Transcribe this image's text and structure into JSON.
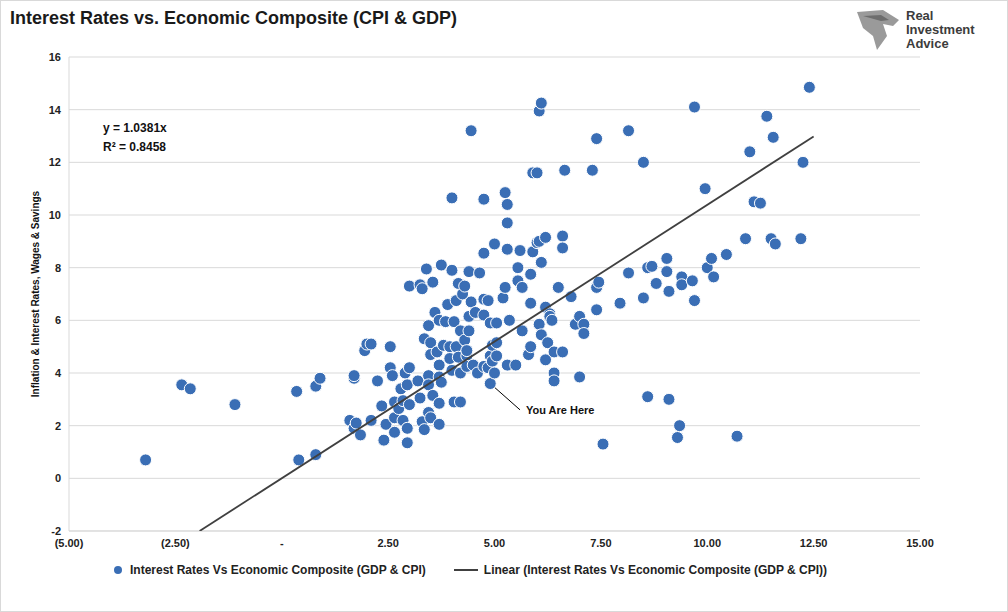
{
  "chart_data": {
    "type": "scatter",
    "title": "Interest Rates vs. Economic Composite (CPI & GDP)",
    "y_label": "Inflation & Interest Rates, Wages & Savings",
    "logo": [
      "Real",
      "Investment",
      "Advice"
    ],
    "annotations": [
      {
        "text": "y = 1.0381x"
      },
      {
        "text": "R² = 0.8458"
      },
      {
        "text": "You Are Here",
        "x": 4.9,
        "y": 3.6,
        "text_x": 5.6,
        "text_y": 2.6
      }
    ],
    "xlim": [
      -5,
      15
    ],
    "xticks": [
      {
        "value": -5,
        "label": "(5.00)"
      },
      {
        "value": -2.5,
        "label": "(2.50)"
      },
      {
        "value": 0,
        "label": "-"
      },
      {
        "value": 2.5,
        "label": "2.50"
      },
      {
        "value": 5,
        "label": "5.00"
      },
      {
        "value": 7.5,
        "label": "7.50"
      },
      {
        "value": 10,
        "label": "10.00"
      },
      {
        "value": 12.5,
        "label": "12.50"
      },
      {
        "value": 15,
        "label": "15.00"
      }
    ],
    "ylim": [
      -2,
      16
    ],
    "yticks": [
      -2,
      0,
      2,
      4,
      6,
      8,
      10,
      12,
      14,
      16
    ],
    "grid": "y",
    "legend": "bottom",
    "series": [
      {
        "name": "Interest Rates Vs Economic Composite (GDP & CPI)",
        "type": "scatter",
        "marker": "circle",
        "color": "#3a6eb5",
        "x": [
          -3.2,
          -2.35,
          -2.15,
          -1.1,
          0.35,
          0.4,
          0.8,
          0.8,
          0.9,
          1.6,
          1.7,
          1.75,
          1.7,
          1.7,
          1.85,
          1.95,
          2.0,
          2.1,
          2.1,
          2.25,
          2.35,
          2.4,
          2.45,
          2.55,
          2.55,
          2.6,
          2.65,
          2.65,
          2.65,
          2.75,
          2.8,
          2.85,
          2.85,
          2.9,
          2.95,
          2.95,
          2.95,
          3.0,
          3.0,
          3.0,
          3.2,
          3.25,
          3.25,
          3.3,
          3.3,
          3.35,
          3.35,
          3.4,
          3.45,
          3.45,
          3.45,
          3.45,
          3.5,
          3.5,
          3.5,
          3.55,
          3.55,
          3.6,
          3.65,
          3.7,
          3.7,
          3.7,
          3.7,
          3.7,
          3.75,
          3.75,
          3.8,
          3.85,
          3.9,
          3.95,
          3.95,
          4.0,
          4.0,
          4.0,
          4.05,
          4.05,
          4.1,
          4.1,
          4.15,
          4.15,
          4.2,
          4.2,
          4.2,
          4.25,
          4.3,
          4.3,
          4.35,
          4.35,
          4.35,
          4.4,
          4.4,
          4.4,
          4.45,
          4.45,
          4.5,
          4.55,
          4.6,
          4.65,
          4.75,
          4.75,
          4.75,
          4.75,
          4.75,
          4.85,
          4.85,
          4.9,
          4.9,
          4.9,
          4.95,
          4.95,
          5.0,
          5.0,
          5.05,
          5.05,
          5.05,
          5.2,
          5.25,
          5.25,
          5.3,
          5.3,
          5.3,
          5.3,
          5.35,
          5.5,
          5.55,
          5.55,
          5.6,
          5.65,
          5.65,
          5.8,
          5.85,
          5.85,
          5.85,
          5.9,
          5.9,
          6.0,
          6.0,
          6.05,
          6.05,
          6.05,
          6.1,
          6.1,
          6.1,
          6.2,
          6.2,
          6.2,
          6.25,
          6.3,
          6.3,
          6.35,
          6.4,
          6.4,
          6.4,
          6.5,
          6.6,
          6.6,
          6.6,
          6.65,
          6.8,
          6.9,
          7.0,
          7.0,
          7.1,
          7.1,
          7.3,
          7.4,
          7.4,
          7.4,
          7.45,
          7.55,
          7.95,
          8.15,
          8.15,
          8.5,
          8.5,
          8.6,
          8.6,
          8.7,
          8.8,
          9.05,
          9.05,
          9.1,
          9.1,
          9.3,
          9.35,
          9.4,
          9.4,
          9.65,
          9.7,
          9.7,
          9.95,
          10.0,
          10.1,
          10.15,
          10.45,
          10.7,
          10.9,
          11.0,
          11.1,
          11.25,
          11.4,
          11.5,
          11.55,
          11.6,
          12.2,
          12.25,
          12.4
        ],
        "values": [
          0.7,
          3.55,
          3.4,
          2.8,
          3.3,
          0.7,
          0.9,
          3.5,
          3.8,
          2.2,
          1.9,
          2.1,
          3.8,
          3.9,
          1.65,
          4.85,
          5.1,
          5.1,
          2.2,
          3.7,
          2.75,
          1.45,
          2.05,
          4.2,
          5.0,
          3.9,
          2.3,
          2.9,
          1.75,
          2.65,
          3.4,
          2.95,
          2.2,
          4.0,
          3.55,
          1.9,
          1.35,
          2.8,
          4.2,
          7.3,
          3.7,
          3.05,
          7.35,
          7.2,
          2.15,
          1.85,
          5.3,
          7.95,
          2.5,
          3.9,
          3.55,
          5.8,
          5.15,
          4.7,
          2.3,
          3.15,
          7.45,
          6.3,
          4.8,
          6.0,
          4.3,
          3.85,
          2.85,
          2.05,
          3.65,
          8.1,
          5.05,
          5.95,
          6.6,
          5.0,
          4.55,
          7.9,
          4.1,
          10.65,
          5.95,
          2.9,
          6.75,
          5.0,
          7.4,
          4.6,
          5.6,
          4.0,
          2.9,
          7.0,
          7.3,
          5.25,
          4.65,
          4.85,
          4.25,
          7.85,
          6.15,
          5.6,
          6.7,
          13.2,
          4.3,
          6.3,
          4.0,
          7.8,
          6.2,
          6.8,
          8.55,
          10.6,
          4.25,
          6.75,
          4.2,
          5.9,
          4.65,
          3.6,
          4.45,
          5.05,
          8.9,
          4.0,
          5.9,
          5.15,
          4.65,
          6.85,
          10.85,
          7.25,
          10.4,
          9.7,
          8.7,
          4.3,
          6.0,
          4.3,
          8.0,
          7.5,
          8.65,
          7.25,
          5.6,
          4.7,
          7.75,
          6.65,
          5.0,
          8.6,
          11.6,
          8.95,
          11.6,
          9.0,
          5.85,
          13.95,
          8.2,
          5.45,
          14.25,
          9.15,
          6.5,
          4.5,
          5.15,
          6.25,
          6.15,
          6.0,
          4.8,
          4.0,
          3.7,
          7.25,
          9.2,
          8.75,
          4.8,
          11.7,
          6.9,
          5.85,
          6.15,
          3.85,
          5.85,
          5.5,
          11.7,
          12.9,
          7.25,
          6.4,
          7.45,
          1.3,
          6.65,
          7.8,
          13.2,
          6.85,
          12.0,
          8.0,
          3.1,
          8.05,
          7.4,
          7.85,
          8.35,
          7.1,
          3.0,
          1.55,
          2.0,
          7.65,
          7.35,
          7.5,
          6.75,
          14.1,
          11.0,
          8.0,
          8.35,
          7.65,
          8.5,
          1.6,
          9.1,
          12.4,
          10.5,
          10.45,
          13.75,
          9.1,
          12.95,
          8.9,
          9.1,
          12.0,
          14.85
        ]
      },
      {
        "name": "Linear (Interest Rates Vs Economic Composite (GDP & CPI))",
        "type": "line",
        "line_style": "solid",
        "color": "#404040",
        "x": [
          -1.93,
          12.5
        ],
        "values": [
          -2,
          12.98
        ]
      }
    ]
  }
}
